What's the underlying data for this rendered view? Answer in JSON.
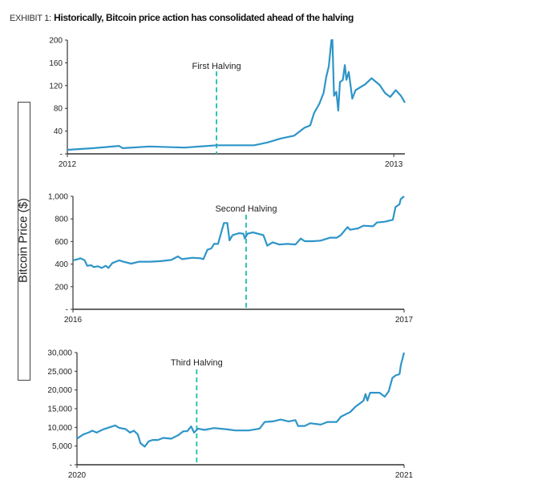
{
  "title": {
    "prefix": "EXHIBIT 1:",
    "main": "Historically, Bitcoin price action has consolidated ahead of the halving"
  },
  "ylabel": "Bitcoin Price ($)",
  "colors": {
    "line": "#2e95c8",
    "halving": "#2ec4b0",
    "axis": "#333333"
  },
  "chart_data": [
    {
      "type": "line",
      "xlim": [
        2012,
        2013.034
      ],
      "ylim": [
        0,
        200
      ],
      "yticks": [
        0,
        40,
        80,
        120,
        160,
        200
      ],
      "ytick_labels": [
        "-",
        "40",
        "80",
        "120",
        "160",
        "200"
      ],
      "xticks": [
        2012,
        2013
      ],
      "xtick_labels": [
        "2012",
        "2013"
      ],
      "annotation": {
        "label": "First Halving",
        "x": 2012.457
      },
      "x": [
        2012.0,
        2012.08,
        2012.158,
        2012.17,
        2012.252,
        2012.359,
        2012.457,
        2012.572,
        2012.613,
        2012.654,
        2012.695,
        2012.727,
        2012.744,
        2012.756,
        2012.772,
        2012.785,
        2012.793,
        2012.801,
        2012.809,
        2012.812,
        2012.817,
        2012.824,
        2012.83,
        2012.835,
        2012.844,
        2012.85,
        2012.855,
        2012.862,
        2012.873,
        2012.883,
        2012.903,
        2012.912,
        2012.932,
        2012.957,
        2012.973,
        2012.989,
        2013.006,
        2013.022,
        2013.034
      ],
      "y": [
        7,
        10,
        14,
        10,
        13,
        11,
        15,
        15,
        20,
        27,
        32,
        46,
        50,
        72,
        88,
        107,
        135,
        154,
        200,
        200,
        102,
        109,
        76,
        126,
        130,
        156,
        130,
        144,
        97,
        112,
        119,
        122,
        133,
        121,
        107,
        100,
        112,
        102,
        90
      ]
    },
    {
      "type": "line",
      "xlim": [
        2016,
        2017
      ],
      "ylim": [
        0,
        1000
      ],
      "yticks": [
        0,
        200,
        400,
        600,
        800,
        1000
      ],
      "ytick_labels": [
        "-",
        "200",
        "400",
        "600",
        "800",
        "1,000"
      ],
      "xticks": [
        2016,
        2017
      ],
      "xtick_labels": [
        "2016",
        "2017"
      ],
      "annotation": {
        "label": "Second Halving",
        "x": 2016.523
      },
      "x": [
        2016.0,
        2016.015,
        2016.023,
        2016.035,
        2016.043,
        2016.055,
        2016.063,
        2016.075,
        2016.087,
        2016.099,
        2016.107,
        2016.119,
        2016.14,
        2016.152,
        2016.176,
        2016.2,
        2016.232,
        2016.265,
        2016.297,
        2016.317,
        2016.329,
        2016.361,
        2016.385,
        2016.394,
        2016.406,
        2016.418,
        2016.426,
        2016.438,
        2016.448,
        2016.456,
        2016.466,
        2016.473,
        2016.482,
        2016.502,
        2016.515,
        2016.519,
        2016.527,
        2016.543,
        2016.575,
        2016.587,
        2016.603,
        2016.623,
        2016.648,
        2016.672,
        2016.688,
        2016.7,
        2016.724,
        2016.748,
        2016.777,
        2016.797,
        2016.809,
        2016.829,
        2016.837,
        2016.861,
        2016.877,
        2016.906,
        2016.918,
        2016.942,
        2016.966,
        2016.974,
        2016.986,
        2016.99,
        2017.0
      ],
      "y": [
        433,
        444,
        452,
        433,
        385,
        390,
        374,
        381,
        366,
        385,
        366,
        409,
        433,
        421,
        404,
        421,
        421,
        426,
        437,
        468,
        444,
        456,
        452,
        444,
        527,
        539,
        579,
        579,
        681,
        764,
        764,
        610,
        657,
        674,
        669,
        626,
        669,
        681,
        657,
        563,
        593,
        574,
        579,
        574,
        626,
        603,
        603,
        608,
        634,
        634,
        657,
        728,
        704,
        716,
        740,
        735,
        768,
        775,
        792,
        905,
        929,
        976,
        1000
      ]
    },
    {
      "type": "line",
      "xlim": [
        2020,
        2021
      ],
      "ylim": [
        0,
        30000
      ],
      "yticks": [
        0,
        5000,
        10000,
        15000,
        20000,
        25000,
        30000
      ],
      "ytick_labels": [
        "-",
        "5,000",
        "10,000",
        "15,000",
        "20,000",
        "25,000",
        "30,000"
      ],
      "xticks": [
        2020,
        2021
      ],
      "xtick_labels": [
        "2020",
        "2021"
      ],
      "annotation": {
        "label": "Third Halving",
        "x": 2020.366
      },
      "x": [
        2020.0,
        2020.019,
        2020.035,
        2020.047,
        2020.06,
        2020.08,
        2020.1,
        2020.117,
        2020.129,
        2020.149,
        2020.162,
        2020.174,
        2020.186,
        2020.194,
        2020.207,
        2020.219,
        2020.231,
        2020.247,
        2020.264,
        2020.288,
        2020.309,
        2020.325,
        2020.337,
        2020.349,
        2020.358,
        2020.37,
        2020.39,
        2020.419,
        2020.46,
        2020.484,
        2020.525,
        2020.558,
        2020.574,
        2020.598,
        2020.623,
        2020.647,
        2020.668,
        2020.676,
        2020.696,
        2020.713,
        2020.745,
        2020.766,
        2020.794,
        2020.807,
        2020.835,
        2020.851,
        2020.876,
        2020.882,
        2020.888,
        2020.896,
        2020.925,
        2020.941,
        2020.953,
        2020.964,
        2020.974,
        2020.986,
        2020.99,
        2021.0
      ],
      "y": [
        6967,
        8104,
        8602,
        9100,
        8602,
        9455,
        10024,
        10521,
        9882,
        9526,
        8602,
        9100,
        8104,
        5758,
        4834,
        6256,
        6611,
        6611,
        7180,
        6967,
        7891,
        8957,
        8957,
        10237,
        8602,
        9668,
        9313,
        9810,
        9455,
        9171,
        9171,
        9668,
        11445,
        11588,
        12085,
        11588,
        11943,
        10379,
        10379,
        11090,
        10735,
        11445,
        11445,
        12867,
        14076,
        15498,
        17133,
        18910,
        17133,
        19265,
        19265,
        18199,
        19621,
        23175,
        23886,
        24242,
        26588,
        30000
      ]
    }
  ]
}
